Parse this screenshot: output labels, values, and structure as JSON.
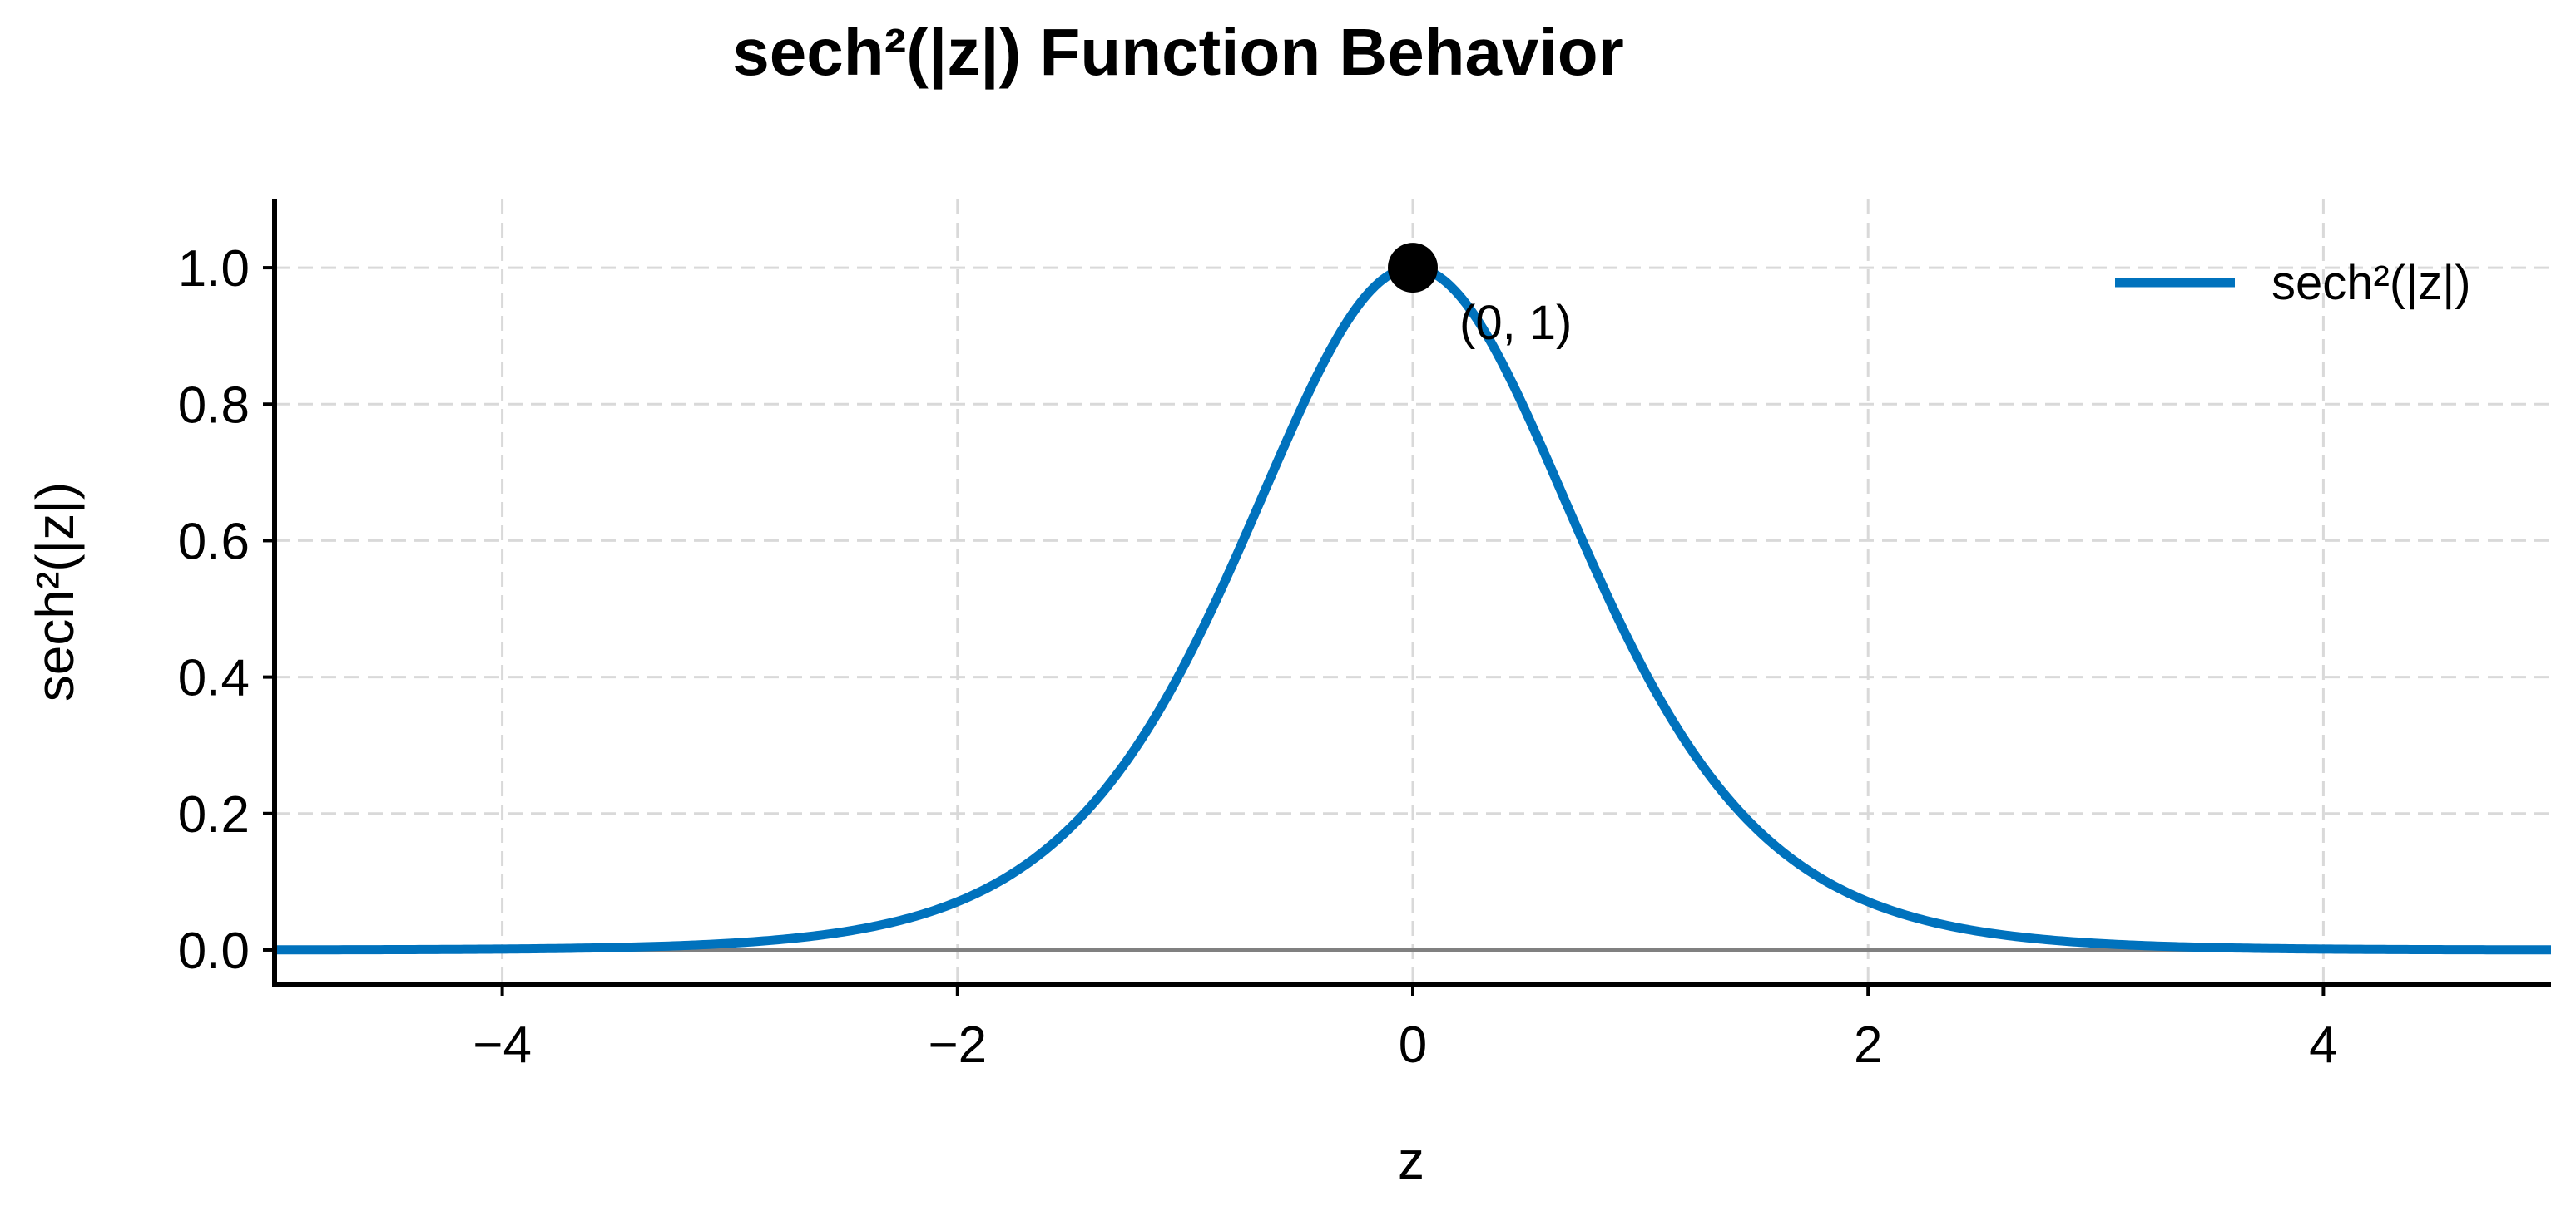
{
  "chart_data": {
    "type": "line",
    "title": "sech²(|z|) Function Behavior",
    "xlabel": "z",
    "ylabel": "sech²(|z|)",
    "xlim": [
      -5,
      5
    ],
    "ylim": [
      -0.05,
      1.1
    ],
    "xticks": [
      -4,
      -2,
      0,
      2,
      4
    ],
    "xtick_labels": [
      "−4",
      "−2",
      "0",
      "2",
      "4"
    ],
    "yticks": [
      0.0,
      0.2,
      0.4,
      0.6,
      0.8,
      1.0
    ],
    "ytick_labels": [
      "0.0",
      "0.2",
      "0.4",
      "0.6",
      "0.8",
      "1.0"
    ],
    "grid": true,
    "legend_position": "top-right",
    "series": [
      {
        "name": "sech²(|z|)",
        "color": "#0072BD",
        "function": "sech^2(|z|)",
        "x": [
          -5,
          -4,
          -3,
          -2.5,
          -2,
          -1.5,
          -1,
          -0.5,
          0,
          0.5,
          1,
          1.5,
          2,
          2.5,
          3,
          4,
          5
        ],
        "y": [
          0.0002,
          0.0013,
          0.0099,
          0.0266,
          0.0707,
          0.1807,
          0.42,
          0.7864,
          1.0,
          0.7864,
          0.42,
          0.1807,
          0.0707,
          0.0266,
          0.0099,
          0.0013,
          0.0002
        ]
      }
    ],
    "reference_line": {
      "y": 0,
      "color": "#808080"
    },
    "highlight_point": {
      "x": 0,
      "y": 1,
      "label": "(0, 1)",
      "color": "#000000"
    }
  }
}
